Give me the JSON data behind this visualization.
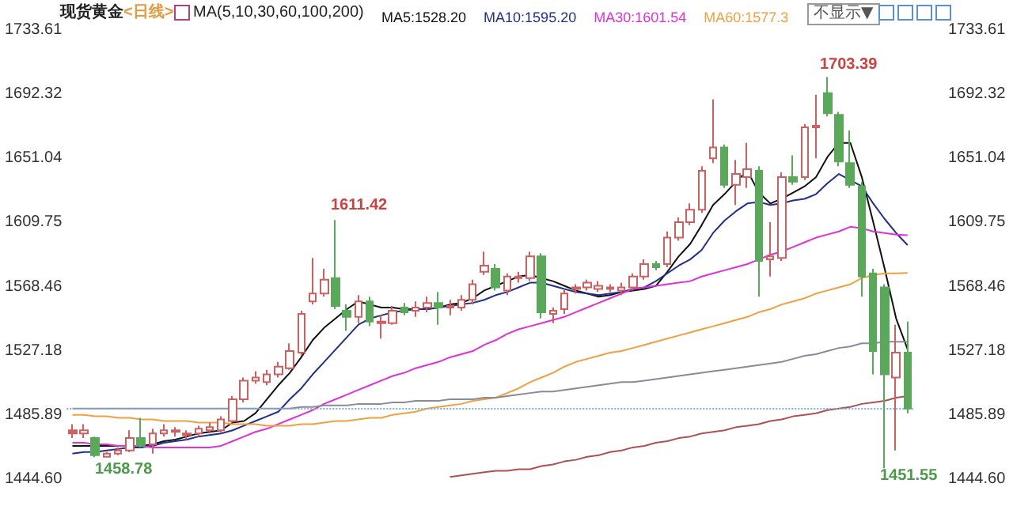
{
  "chart_data": {
    "type": "candlestick",
    "title": "现货黄金",
    "subtitle": "<日线>",
    "annotations": [
      "MA(5,10,30,60,100,200)",
      "不显示▼",
      "1611.42",
      "1703.39",
      "1458.78",
      "1451.55"
    ],
    "categories": [
      null,
      null,
      null,
      null,
      null,
      null,
      null,
      null,
      null,
      null,
      null,
      null,
      null,
      null,
      null,
      null,
      null,
      null,
      null,
      null,
      null,
      null,
      null,
      null,
      null,
      null,
      null,
      null,
      null,
      null,
      null,
      null,
      null,
      null,
      null,
      null,
      null,
      null,
      null,
      null,
      null,
      null,
      null,
      null,
      null,
      null,
      null,
      null,
      null,
      null,
      null,
      null,
      null,
      null,
      null,
      null,
      null,
      null,
      null,
      null,
      null,
      null,
      null,
      null,
      null,
      null,
      null,
      null,
      null,
      null,
      null,
      null,
      null,
      null
    ],
    "ohlc": [
      [
        1476,
        1480,
        1471,
        1474
      ],
      [
        1474,
        1480,
        1471,
        1476
      ],
      [
        1471,
        1472,
        1458.78,
        1460
      ],
      [
        1459,
        1462,
        1458.9,
        1461
      ],
      [
        1461,
        1465,
        1460,
        1463
      ],
      [
        1463,
        1476,
        1462,
        1471
      ],
      [
        1471,
        1484,
        1465,
        1466
      ],
      [
        1467,
        1477,
        1461,
        1474
      ],
      [
        1474,
        1480,
        1472,
        1476
      ],
      [
        1475,
        1478,
        1472,
        1476
      ],
      [
        1473,
        1476,
        1470,
        1474
      ],
      [
        1474,
        1479,
        1472,
        1477
      ],
      [
        1476,
        1481,
        1474,
        1478
      ],
      [
        1476,
        1485,
        1474,
        1483
      ],
      [
        1482,
        1498,
        1481,
        1496
      ],
      [
        1496,
        1510,
        1494,
        1508
      ],
      [
        1508,
        1514,
        1506,
        1510
      ],
      [
        1507,
        1515,
        1505,
        1512
      ],
      [
        1512,
        1520,
        1510,
        1517
      ],
      [
        1516,
        1532,
        1515,
        1527
      ],
      [
        1526,
        1553,
        1524,
        1551
      ],
      [
        1559,
        1587,
        1557,
        1564
      ],
      [
        1564,
        1580,
        1562,
        1573
      ],
      [
        1574,
        1611.42,
        1554,
        1556
      ],
      [
        1553,
        1557,
        1540,
        1549
      ],
      [
        1549,
        1563,
        1545,
        1559
      ],
      [
        1559,
        1562,
        1543,
        1546
      ],
      [
        1545,
        1550,
        1535,
        1546
      ],
      [
        1545,
        1556,
        1544,
        1553
      ],
      [
        1555,
        1558,
        1550,
        1552
      ],
      [
        1553,
        1559,
        1549,
        1555
      ],
      [
        1555,
        1562,
        1552,
        1558
      ],
      [
        1558,
        1565,
        1544,
        1555
      ],
      [
        1555,
        1560,
        1550,
        1556
      ],
      [
        1555,
        1563,
        1553,
        1560
      ],
      [
        1560,
        1573,
        1557,
        1570
      ],
      [
        1578,
        1591,
        1576,
        1582
      ],
      [
        1580,
        1583,
        1566,
        1568
      ],
      [
        1566,
        1577,
        1563,
        1575
      ],
      [
        1574,
        1578,
        1571,
        1575
      ],
      [
        1574,
        1591,
        1572,
        1588
      ],
      [
        1588,
        1590,
        1548,
        1552
      ],
      [
        1551,
        1555,
        1545,
        1553
      ],
      [
        1554,
        1567,
        1551,
        1564
      ],
      [
        1567,
        1570,
        1564,
        1568
      ],
      [
        1568,
        1573,
        1566,
        1571
      ],
      [
        1567,
        1572,
        1565,
        1569
      ],
      [
        1567,
        1570,
        1565,
        1568
      ],
      [
        1566,
        1571,
        1563,
        1568
      ],
      [
        1568,
        1577,
        1566,
        1575
      ],
      [
        1575,
        1586,
        1573,
        1583
      ],
      [
        1583,
        1585,
        1579,
        1581
      ],
      [
        1583,
        1604,
        1581,
        1600
      ],
      [
        1600,
        1613,
        1598,
        1610
      ],
      [
        1610,
        1622,
        1608,
        1618
      ],
      [
        1618,
        1646,
        1616,
        1643
      ],
      [
        1651,
        1689,
        1648,
        1658
      ],
      [
        1658,
        1660,
        1632,
        1634
      ],
      [
        1634,
        1650,
        1621,
        1641
      ],
      [
        1639,
        1661,
        1632,
        1644
      ],
      [
        1643,
        1646,
        1562,
        1585
      ],
      [
        1586,
        1610,
        1575,
        1588
      ],
      [
        1587,
        1642,
        1585,
        1639
      ],
      [
        1639,
        1653,
        1634,
        1636
      ],
      [
        1639,
        1673,
        1637,
        1671
      ],
      [
        1671,
        1692,
        1651,
        1672
      ],
      [
        1693,
        1703.39,
        1678,
        1680
      ],
      [
        1679,
        1681,
        1646,
        1649
      ],
      [
        1648,
        1669,
        1632,
        1634
      ],
      [
        1633,
        1636,
        1562,
        1575
      ],
      [
        1577,
        1580,
        1512,
        1527
      ],
      [
        1568,
        1570,
        1451.55,
        1512
      ],
      [
        1510,
        1544,
        1463,
        1526
      ],
      [
        1526,
        1546,
        1487,
        1490
      ]
    ],
    "colors": [
      "#d06060",
      "#d06060",
      "#5aa85a",
      "#d06060",
      "#d06060",
      "#d06060",
      "#5aa85a",
      "#d06060",
      "#d06060",
      "#d06060",
      "#d06060",
      "#d06060",
      "#d06060",
      "#d06060",
      "#d06060",
      "#d06060",
      "#d06060",
      "#d06060",
      "#d06060",
      "#d06060",
      "#d06060",
      "#d06060",
      "#d06060",
      "#5aa85a",
      "#5aa85a",
      "#d06060",
      "#5aa85a",
      "#d06060",
      "#d06060",
      "#5aa85a",
      "#d06060",
      "#d06060",
      "#5aa85a",
      "#d06060",
      "#d06060",
      "#d06060",
      "#d06060",
      "#5aa85a",
      "#d06060",
      "#d06060",
      "#d06060",
      "#5aa85a",
      "#d06060",
      "#d06060",
      "#d06060",
      "#d06060",
      "#d06060",
      "#d06060",
      "#d06060",
      "#d06060",
      "#d06060",
      "#5aa85a",
      "#d06060",
      "#d06060",
      "#d06060",
      "#d06060",
      "#d06060",
      "#5aa85a",
      "#d06060",
      "#d06060",
      "#5aa85a",
      "#d06060",
      "#d06060",
      "#5aa85a",
      "#d06060",
      "#d06060",
      "#5aa85a",
      "#5aa85a",
      "#5aa85a",
      "#5aa85a",
      "#5aa85a",
      "#5aa85a",
      "#d06060",
      "#5aa85a"
    ],
    "series": [
      {
        "name": "MA5:1528.20",
        "color": "#111111",
        "type": "line",
        "values": [
          1466,
          1466,
          1466,
          1466,
          1466,
          1466,
          1466,
          1467,
          1469,
          1470,
          1472,
          1474,
          1475,
          1476,
          1481,
          1482,
          1487,
          1496,
          1505,
          1513,
          1523,
          1534,
          1542,
          1548,
          1554,
          1559,
          1557,
          1555,
          1555,
          1554,
          1554,
          1554,
          1555,
          1557,
          1558,
          1561,
          1566,
          1569,
          1572,
          1575,
          1576,
          1574,
          1572,
          1569,
          1566,
          1564,
          1562,
          1563,
          1565,
          1566,
          1567,
          1569,
          1578,
          1588,
          1596,
          1608,
          1621,
          1628,
          1636,
          1643,
          1629,
          1622,
          1625,
          1629,
          1633,
          1639,
          1652,
          1661,
          1661,
          1639,
          1610,
          1580,
          1548,
          1528.2
        ]
      },
      {
        "name": "MA10:1595.20",
        "color": "#1f2f8f",
        "type": "line",
        "values": [
          1461,
          1462,
          1462,
          1463,
          1464,
          1465,
          1465,
          1466,
          1468,
          1469,
          1470,
          1472,
          1473,
          1474,
          1476,
          1479,
          1482,
          1485,
          1488,
          1496,
          1503,
          1512,
          1520,
          1528,
          1536,
          1544,
          1548,
          1550,
          1552,
          1553,
          1554,
          1554,
          1555,
          1556,
          1557,
          1558,
          1560,
          1563,
          1565,
          1568,
          1571,
          1571,
          1569,
          1567,
          1565,
          1564,
          1563,
          1564,
          1565,
          1567,
          1568,
          1572,
          1577,
          1582,
          1586,
          1592,
          1603,
          1611,
          1617,
          1622,
          1623,
          1621,
          1622,
          1624,
          1625,
          1628,
          1635,
          1641,
          1637,
          1633,
          1622,
          1612,
          1603,
          1595.2
        ]
      },
      {
        "name": "MA30:1601.54",
        "color": "#e030d8",
        "type": "line",
        "values": [
          1468,
          1468,
          1467,
          1467,
          1466,
          1466,
          1466,
          1465,
          1465,
          1465,
          1465,
          1465,
          1465,
          1466,
          1469,
          1472,
          1475,
          1477,
          1480,
          1483,
          1486,
          1489,
          1493,
          1496,
          1499,
          1502,
          1505,
          1508,
          1511,
          1513,
          1516,
          1518,
          1520,
          1523,
          1525,
          1527,
          1531,
          1534,
          1538,
          1541,
          1543,
          1545,
          1547,
          1549,
          1552,
          1555,
          1558,
          1561,
          1564,
          1567,
          1568,
          1569,
          1570,
          1571,
          1572,
          1575,
          1577,
          1579,
          1581,
          1583,
          1586,
          1589,
          1591,
          1594,
          1597,
          1600,
          1602,
          1604,
          1607,
          1606,
          1604,
          1603,
          1602,
          1601.54
        ]
      },
      {
        "name": "MA60:1577.3",
        "color": "#f0a040",
        "type": "line",
        "values": [
          1486,
          1486,
          1485,
          1485,
          1484,
          1484,
          1483,
          1483,
          1482,
          1482,
          1482,
          1481,
          1481,
          1481,
          1480,
          1480,
          1480,
          1479,
          1479,
          1479,
          1480,
          1480,
          1481,
          1482,
          1482,
          1483,
          1484,
          1484,
          1486,
          1487,
          1488,
          1490,
          1491,
          1492,
          1493,
          1495,
          1496,
          1497,
          1500,
          1503,
          1507,
          1510,
          1513,
          1517,
          1520,
          1522,
          1524,
          1526,
          1527,
          1529,
          1531,
          1533,
          1535,
          1537,
          1539,
          1541,
          1543,
          1545,
          1547,
          1549,
          1552,
          1554,
          1557,
          1559,
          1561,
          1564,
          1566,
          1568,
          1570,
          1574,
          1576,
          1577,
          1577,
          1577.3
        ]
      },
      {
        "color": "#8a8a9a",
        "type": "line",
        "values": [
          1490,
          1490,
          1490,
          1490,
          1490,
          1490,
          1490,
          1490,
          1490,
          1490,
          1490,
          1490,
          1490,
          1490,
          1490,
          1490,
          1490,
          1490,
          1490,
          1490,
          1491,
          1491,
          1492,
          1492,
          1492,
          1493,
          1493,
          1493,
          1494,
          1494,
          1495,
          1495,
          1495,
          1496,
          1496,
          1496,
          1497,
          1497,
          1498,
          1499,
          1500,
          1501,
          1501,
          1502,
          1503,
          1504,
          1505,
          1506,
          1507,
          1507,
          1508,
          1509,
          1510,
          1511,
          1512,
          1513,
          1514,
          1515,
          1516,
          1517,
          1518,
          1519,
          1520,
          1522,
          1524,
          1525,
          1527,
          1529,
          1530,
          1532,
          1532,
          1533,
          1533,
          1533
        ]
      },
      {
        "color": "#b05050",
        "type": "line",
        "values": [
          null,
          null,
          null,
          null,
          null,
          null,
          null,
          null,
          null,
          null,
          null,
          null,
          null,
          null,
          null,
          null,
          null,
          null,
          null,
          null,
          null,
          null,
          null,
          null,
          null,
          null,
          null,
          null,
          null,
          null,
          null,
          null,
          null,
          1446,
          1447,
          1448,
          1449,
          1450,
          1450,
          1451,
          1451,
          1453,
          1454,
          1456,
          1457,
          1459,
          1460,
          1462,
          1463,
          1465,
          1466,
          1468,
          1469,
          1471,
          1472,
          1474,
          1475,
          1476,
          1478,
          1479,
          1480,
          1482,
          1483,
          1485,
          1486,
          1487,
          1489,
          1490,
          1491,
          1493,
          1494,
          1495,
          1497,
          1498
        ]
      }
    ],
    "ylim": [
      1444.6,
      1733.61
    ],
    "yticks": [
      {
        "value": 1444.6,
        "label": "1444.60"
      },
      1485.89,
      1527.18,
      1568.46,
      1609.75,
      1651.04,
      1692.32,
      1733.61
    ],
    "y2lim": [
      1444.6,
      1733.61
    ],
    "y2ticks": [
      {
        "value": 1444.6,
        "label": "1444.60"
      },
      1485.89,
      1527.18,
      1568.46,
      1609.75,
      1651.04,
      1692.32,
      1733.61
    ],
    "ref_lines": [
      {
        "axis": "y",
        "value": 1490,
        "color": "#7fb2d6",
        "line_style": "dotted"
      }
    ],
    "tick_labels": "y",
    "legend": "top",
    "grid": false
  }
}
